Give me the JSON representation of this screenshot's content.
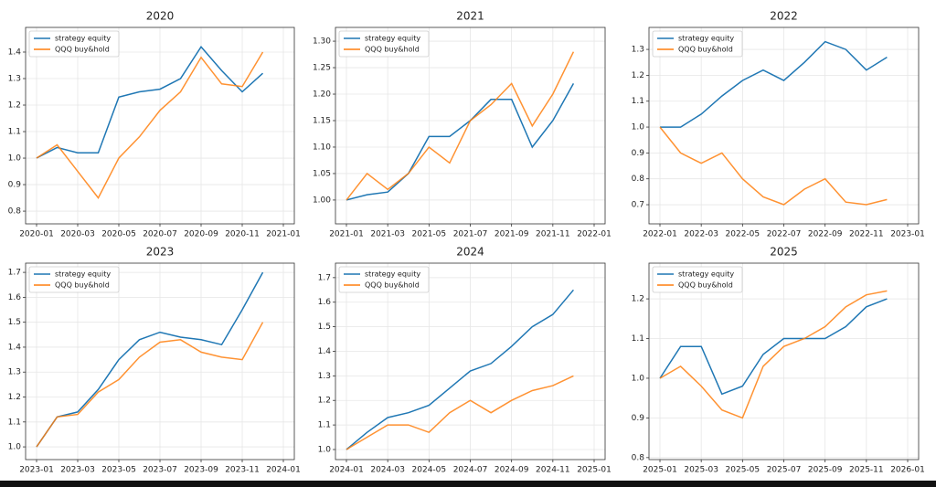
{
  "chart_data": [
    {
      "type": "line",
      "title": "2020",
      "legend": "upper left",
      "grid": true,
      "x": [
        "2020-01",
        "2020-02",
        "2020-03",
        "2020-04",
        "2020-05",
        "2020-06",
        "2020-07",
        "2020-08",
        "2020-09",
        "2020-10",
        "2020-11",
        "2020-12"
      ],
      "xlim": [
        "2020-01",
        "2021-01"
      ],
      "xticks": [
        "2020-01",
        "2020-03",
        "2020-05",
        "2020-07",
        "2020-09",
        "2020-11",
        "2021-01"
      ],
      "ylim": [
        0.752,
        1.493
      ],
      "yticks": [
        0.8,
        0.9,
        {
          "value": 1,
          "label": "1.0"
        },
        1.1,
        1.2,
        1.3,
        1.4
      ],
      "series": [
        {
          "name": "strategy equity",
          "color": "#1f77b4",
          "values": [
            1.0,
            1.04,
            1.02,
            1.02,
            1.23,
            1.25,
            1.26,
            1.3,
            1.42,
            1.33,
            1.25,
            1.32
          ]
        },
        {
          "name": "QQQ buy&hold",
          "color": "#ff7f0e",
          "values": [
            1.0,
            1.05,
            0.95,
            0.85,
            1.0,
            1.08,
            1.18,
            1.25,
            1.38,
            1.28,
            1.27,
            1.4
          ]
        }
      ]
    },
    {
      "type": "line",
      "title": "2021",
      "legend": "upper left",
      "grid": true,
      "x": [
        "2021-01",
        "2021-02",
        "2021-03",
        "2021-04",
        "2021-05",
        "2021-06",
        "2021-07",
        "2021-08",
        "2021-09",
        "2021-10",
        "2021-11",
        "2021-12"
      ],
      "xlim": [
        "2021-01",
        "2022-01"
      ],
      "xticks": [
        "2021-01",
        "2021-03",
        "2021-05",
        "2021-07",
        "2021-09",
        "2021-11",
        "2022-01"
      ],
      "ylim": [
        0.955,
        1.326
      ],
      "yticks": [
        {
          "value": 1,
          "label": "1.00"
        },
        1.05,
        {
          "value": 1.1,
          "label": "1.10"
        },
        1.15,
        {
          "value": 1.2,
          "label": "1.20"
        },
        1.25,
        {
          "value": 1.3,
          "label": "1.30"
        }
      ],
      "series": [
        {
          "name": "strategy equity",
          "color": "#1f77b4",
          "values": [
            1.0,
            1.01,
            1.015,
            1.05,
            1.12,
            1.12,
            1.15,
            1.19,
            1.19,
            1.1,
            1.15,
            1.22
          ]
        },
        {
          "name": "QQQ buy&hold",
          "color": "#ff7f0e",
          "values": [
            1.0,
            1.05,
            1.02,
            1.05,
            1.1,
            1.07,
            1.15,
            1.18,
            1.22,
            1.14,
            1.2,
            1.28
          ]
        }
      ]
    },
    {
      "type": "line",
      "title": "2022",
      "legend": "upper left",
      "grid": true,
      "x": [
        "2022-01",
        "2022-02",
        "2022-03",
        "2022-04",
        "2022-05",
        "2022-06",
        "2022-07",
        "2022-08",
        "2022-09",
        "2022-10",
        "2022-11",
        "2022-12"
      ],
      "xlim": [
        "2022-01",
        "2023-01"
      ],
      "xticks": [
        "2022-01",
        "2022-03",
        "2022-05",
        "2022-07",
        "2022-09",
        "2022-11",
        "2023-01"
      ],
      "ylim": [
        0.626,
        1.385
      ],
      "yticks": [
        0.7,
        0.8,
        0.9,
        {
          "value": 1,
          "label": "1.0"
        },
        1.1,
        1.2,
        1.3
      ],
      "series": [
        {
          "name": "strategy equity",
          "color": "#1f77b4",
          "values": [
            1.0,
            1.0,
            1.05,
            1.12,
            1.18,
            1.22,
            1.18,
            1.25,
            1.33,
            1.3,
            1.22,
            1.27
          ]
        },
        {
          "name": "QQQ buy&hold",
          "color": "#ff7f0e",
          "values": [
            1.0,
            0.9,
            0.86,
            0.9,
            0.8,
            0.73,
            0.7,
            0.76,
            0.8,
            0.71,
            0.7,
            0.72
          ]
        }
      ]
    },
    {
      "type": "line",
      "title": "2023",
      "legend": "upper left",
      "grid": true,
      "x": [
        "2023-01",
        "2023-02",
        "2023-03",
        "2023-04",
        "2023-05",
        "2023-06",
        "2023-07",
        "2023-08",
        "2023-09",
        "2023-10",
        "2023-11",
        "2023-12"
      ],
      "xlim": [
        "2023-01",
        "2024-01"
      ],
      "xticks": [
        "2023-01",
        "2023-03",
        "2023-05",
        "2023-07",
        "2023-09",
        "2023-11",
        "2024-01"
      ],
      "ylim": [
        0.949,
        1.737
      ],
      "yticks": [
        {
          "value": 1,
          "label": "1.0"
        },
        1.1,
        1.2,
        1.3,
        1.4,
        1.5,
        1.6,
        1.7
      ],
      "series": [
        {
          "name": "strategy equity",
          "color": "#1f77b4",
          "values": [
            1.0,
            1.12,
            1.14,
            1.23,
            1.35,
            1.43,
            1.46,
            1.44,
            1.43,
            1.41,
            1.55,
            1.7
          ]
        },
        {
          "name": "QQQ buy&hold",
          "color": "#ff7f0e",
          "values": [
            1.0,
            1.12,
            1.13,
            1.22,
            1.27,
            1.36,
            1.42,
            1.43,
            1.38,
            1.36,
            1.35,
            1.5
          ]
        }
      ]
    },
    {
      "type": "line",
      "title": "2024",
      "legend": "upper left",
      "grid": true,
      "x": [
        "2024-01",
        "2024-02",
        "2024-03",
        "2024-04",
        "2024-05",
        "2024-06",
        "2024-07",
        "2024-08",
        "2024-09",
        "2024-10",
        "2024-11",
        "2024-12"
      ],
      "xlim": [
        "2024-01",
        "2025-01"
      ],
      "xticks": [
        "2024-01",
        "2024-03",
        "2024-05",
        "2024-07",
        "2024-09",
        "2024-11",
        "2025-01"
      ],
      "ylim": [
        0.959,
        1.759
      ],
      "yticks": [
        {
          "value": 1,
          "label": "1.0"
        },
        1.1,
        1.2,
        1.3,
        1.4,
        1.5,
        1.6,
        1.7
      ],
      "series": [
        {
          "name": "strategy equity",
          "color": "#1f77b4",
          "values": [
            1.0,
            1.07,
            1.13,
            1.15,
            1.18,
            1.25,
            1.32,
            1.35,
            1.42,
            1.5,
            1.55,
            1.65
          ]
        },
        {
          "name": "QQQ buy&hold",
          "color": "#ff7f0e",
          "values": [
            1.0,
            1.05,
            1.1,
            1.1,
            1.07,
            1.15,
            1.2,
            1.15,
            1.2,
            1.24,
            1.26,
            1.3
          ]
        }
      ]
    },
    {
      "type": "line",
      "title": "2025",
      "legend": "upper left",
      "grid": true,
      "x": [
        "2025-01",
        "2025-02",
        "2025-03",
        "2025-04",
        "2025-05",
        "2025-06",
        "2025-07",
        "2025-08",
        "2025-09",
        "2025-10",
        "2025-11",
        "2025-12"
      ],
      "xlim": [
        "2025-01",
        "2026-01"
      ],
      "xticks": [
        "2025-01",
        "2025-03",
        "2025-05",
        "2025-07",
        "2025-09",
        "2025-11",
        "2026-01"
      ],
      "ylim": [
        0.795,
        1.29
      ],
      "yticks": [
        0.8,
        0.9,
        {
          "value": 1,
          "label": "1.0"
        },
        1.1,
        1.2
      ],
      "series": [
        {
          "name": "strategy equity",
          "color": "#1f77b4",
          "values": [
            1.0,
            1.08,
            1.08,
            0.96,
            0.98,
            1.06,
            1.1,
            1.1,
            1.1,
            1.13,
            1.18,
            1.2
          ]
        },
        {
          "name": "QQQ buy&hold",
          "color": "#ff7f0e",
          "values": [
            1.0,
            1.03,
            0.98,
            0.92,
            0.9,
            1.03,
            1.08,
            1.1,
            1.13,
            1.18,
            1.21,
            1.22
          ]
        }
      ]
    }
  ]
}
